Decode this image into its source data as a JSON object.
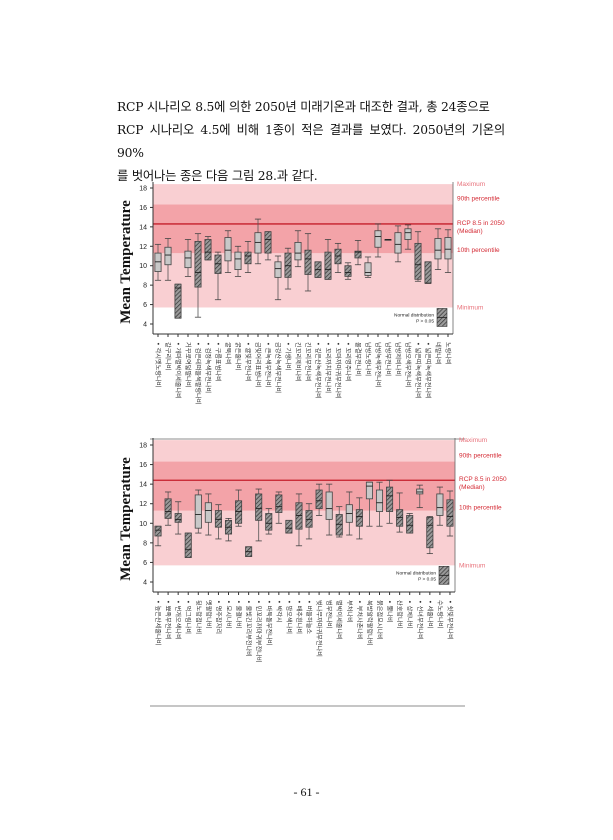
{
  "paragraph": {
    "lines": [
      "RCP 시나리오 8.5에 의한 2050년 미래기온과 대조한 결과, 총 24종으로",
      "RCP 시나리오 4.5에 비해 1종이 적은 결과를 보였다. 2050년의 기온의 90%",
      "를 벗어나는 종은 다음 그림 28.과 같다."
    ]
  },
  "page_number": "- 61 -",
  "colors": {
    "band_outer": "#f9cfd2",
    "band_inner": "#f3a3a8",
    "median_line": "#c41e2a",
    "band_label": "#e8737c",
    "median_label": "#d42a34",
    "box_fill": "#c8c8c8",
    "hatch": "#444444"
  },
  "chart_data": [
    {
      "type": "box",
      "ylabel": "Mean Temperature",
      "ylim": [
        3.5,
        18.5
      ],
      "yticks": [
        "4",
        "6",
        "8",
        "10",
        "12",
        "14",
        "16",
        "18"
      ],
      "bands": {
        "minimum": 5.7,
        "p10": 11.3,
        "median": 14.3,
        "p90": 16.3,
        "maximum": 18.4
      },
      "band_labels": {
        "maximum": "Maximum",
        "p90": "90th percentile",
        "median1": "RCP 8.5 in 2050",
        "median2": "(Median)",
        "p10": "10th percentile",
        "minimum": "Minimum"
      },
      "legend": {
        "line1": "Normal distribution",
        "line2": "P > 0.05"
      },
      "categories": [
        "• 각시멧노랑나비",
        "갈구리나비",
        "• 개마별박이세줄나비",
        "거꾸로여덟팔나비",
        "• 검은테떠들썩팔랑나비",
        "• 검정녹색부전나비",
        "• 구름표범나비",
        "굴뚝나비",
        "굵은줄나비",
        "• 귤빛부전나비",
        "금빛어리표범나비",
        "• 큰녹색부전나비",
        "금강산녹색부전나비",
        "• 기생나비",
        "긴꼬리제비나비",
        "긴꼬리부전나비",
        "• 깊은산녹색부전나비",
        "• 꼬리까치부전나비",
        "• 꼬마까마귀부전나비",
        "• 꼬리명주나비",
        "물결부전나비",
        "남방노랑나비",
        "남방녹색부전나비",
        "남방부전나비",
        "남방제비나비",
        "남방오색부전나비",
        "• 넓은띠녹색부전나비",
        "• 넓은띠녹색부전나비",
        "네발나비",
        "노랑나비"
      ],
      "boxes": [
        {
          "min": 8.5,
          "q1": 9.4,
          "med": 10.4,
          "q3": 11.3,
          "max": 12.2,
          "normal": false
        },
        {
          "min": 8.5,
          "q1": 10.1,
          "med": 11.1,
          "q3": 11.9,
          "max": 12.8,
          "normal": false
        },
        {
          "min": 4.6,
          "q1": 4.6,
          "med": 7.7,
          "q3": 8.1,
          "max": 8.1,
          "normal": true
        },
        {
          "min": 8.9,
          "q1": 9.8,
          "med": 10.8,
          "q3": 11.5,
          "max": 12.7,
          "normal": false
        },
        {
          "min": 4.7,
          "q1": 7.8,
          "med": 9.3,
          "q3": 12.5,
          "max": 13.3,
          "normal": true
        },
        {
          "min": 10.6,
          "q1": 10.6,
          "med": 11.4,
          "q3": 12.7,
          "max": 13.0,
          "normal": true
        },
        {
          "min": 6.5,
          "q1": 9.2,
          "med": 10.2,
          "q3": 11.1,
          "max": 11.4,
          "normal": true
        },
        {
          "min": 9.3,
          "q1": 10.5,
          "med": 11.6,
          "q3": 12.9,
          "max": 13.6,
          "normal": false
        },
        {
          "min": 8.9,
          "q1": 9.6,
          "med": 10.7,
          "q3": 11.4,
          "max": 12.0,
          "normal": false
        },
        {
          "min": 9.3,
          "q1": 10.2,
          "med": 11.0,
          "q3": 11.4,
          "max": 12.5,
          "normal": true
        },
        {
          "min": 10.2,
          "q1": 11.3,
          "med": 12.4,
          "q3": 13.4,
          "max": 14.8,
          "normal": false
        },
        {
          "min": 10.6,
          "q1": 11.3,
          "med": 12.7,
          "q3": 13.5,
          "max": 13.5,
          "normal": true
        },
        {
          "min": 6.5,
          "q1": 8.8,
          "med": 9.7,
          "q3": 10.4,
          "max": 11.0,
          "normal": false
        },
        {
          "min": 7.6,
          "q1": 8.8,
          "med": 10.0,
          "q3": 11.3,
          "max": 11.8,
          "normal": true
        },
        {
          "min": 9.9,
          "q1": 10.6,
          "med": 11.3,
          "q3": 12.4,
          "max": 13.6,
          "normal": false
        },
        {
          "min": 7.4,
          "q1": 9.1,
          "med": 10.7,
          "q3": 11.6,
          "max": 13.3,
          "normal": true
        },
        {
          "min": 8.8,
          "q1": 8.8,
          "med": 9.6,
          "q3": 10.4,
          "max": 10.4,
          "normal": true
        },
        {
          "min": 8.6,
          "q1": 8.6,
          "med": 9.6,
          "q3": 11.4,
          "max": 12.7,
          "normal": true
        },
        {
          "min": 9.3,
          "q1": 10.2,
          "med": 11.0,
          "q3": 11.7,
          "max": 12.3,
          "normal": true
        },
        {
          "min": 8.6,
          "q1": 8.9,
          "med": 9.3,
          "q3": 10.0,
          "max": 10.3,
          "normal": true
        },
        {
          "min": 10.1,
          "q1": 10.8,
          "med": 11.4,
          "q3": 11.5,
          "max": 12.6,
          "normal": true
        },
        {
          "min": 8.8,
          "q1": 9.0,
          "med": 9.3,
          "q3": 10.3,
          "max": 10.9,
          "normal": false
        },
        {
          "min": 10.9,
          "q1": 11.9,
          "med": 13.0,
          "q3": 13.6,
          "max": 14.3,
          "normal": false
        },
        {
          "min": 12.7,
          "q1": 12.7,
          "med": 12.7,
          "q3": 12.7,
          "max": 12.7,
          "normal": false
        },
        {
          "min": 10.4,
          "q1": 11.3,
          "med": 12.2,
          "q3": 13.4,
          "max": 14.1,
          "normal": false
        },
        {
          "min": 11.7,
          "q1": 12.7,
          "med": 13.4,
          "q3": 13.8,
          "max": 14.2,
          "normal": false
        },
        {
          "min": 8.4,
          "q1": 8.6,
          "med": 10.1,
          "q3": 12.3,
          "max": 13.5,
          "normal": true
        },
        {
          "min": 8.2,
          "q1": 8.2,
          "med": 8.2,
          "q3": 10.4,
          "max": 10.4,
          "normal": true
        },
        {
          "min": 9.6,
          "q1": 10.7,
          "med": 11.6,
          "q3": 12.8,
          "max": 13.8,
          "normal": false
        },
        {
          "min": 9.3,
          "q1": 10.7,
          "med": 11.7,
          "q3": 12.9,
          "max": 13.7,
          "normal": false
        }
      ]
    },
    {
      "type": "box",
      "ylabel": "Mean Temperature",
      "ylim": [
        3.5,
        18.5
      ],
      "yticks": [
        "4",
        "6",
        "8",
        "10",
        "12",
        "14",
        "16",
        "18"
      ],
      "bands": {
        "minimum": 5.7,
        "p10": 11.3,
        "median": 14.4,
        "p90": 16.3,
        "maximum": 18.5
      },
      "band_labels": {
        "maximum": "Maximum",
        "p90": "90th percentile",
        "median1": "RCP 8.5 in 2050",
        "median2": "(Median)",
        "p10": "10th percentile",
        "minimum": "Minimum"
      },
      "legend": {
        "line1": "Normal distribution",
        "line2": "P > 0.05"
      },
      "categories": [
        "• 높은산세줄나비",
        "• 뾰족부전나비",
        "• 번개오색나비",
        "• 먹그림나비",
        "뒷노랑점나비",
        "멧팔랑나비",
        "• 명주잠자리",
        "• 모시나비",
        "• 물결나비",
        "• 물빛긴꼬리부전나비",
        "• 민꼬리까마귀부전나비",
        "• 바둑돌부전나비",
        "• 박각시",
        "• 밤오색나비",
        "• 배추흰나비",
        "• 버들하늘소",
        "벚나무까마귀부전나비",
        "범부전나비",
        "별박이세줄나비",
        "부처나비",
        "• 부처사촌나비",
        "북방알락팔랑나비",
        "붉은점모시나비",
        "• 뿔나비",
        "산호랑나비",
        "• 상제나비",
        "• 선녀부전나비",
        "• 세줄나비",
        "수노랑나비",
        "• 쇳빛부전나비"
      ],
      "boxes": [
        {
          "min": 7.7,
          "q1": 8.7,
          "med": 9.3,
          "q3": 9.7,
          "max": 9.7,
          "normal": true
        },
        {
          "min": 9.8,
          "q1": 10.5,
          "med": 11.2,
          "q3": 12.5,
          "max": 13.2,
          "normal": true
        },
        {
          "min": 8.9,
          "q1": 10.1,
          "med": 10.4,
          "q3": 11.0,
          "max": 12.2,
          "normal": true
        },
        {
          "min": 6.5,
          "q1": 6.5,
          "med": 7.3,
          "q3": 9.0,
          "max": 9.0,
          "normal": true
        },
        {
          "min": 9.0,
          "q1": 9.5,
          "med": 10.9,
          "q3": 12.9,
          "max": 13.4,
          "normal": false
        },
        {
          "min": 8.8,
          "q1": 10.1,
          "med": 11.3,
          "q3": 12.1,
          "max": 13.0,
          "normal": false
        },
        {
          "min": 8.4,
          "q1": 9.6,
          "med": 10.4,
          "q3": 11.3,
          "max": 11.9,
          "normal": true
        },
        {
          "min": 8.2,
          "q1": 8.9,
          "med": 9.6,
          "q3": 10.3,
          "max": 10.5,
          "normal": true
        },
        {
          "min": 9.7,
          "q1": 10.0,
          "med": 11.2,
          "q3": 12.3,
          "max": 13.4,
          "normal": true
        },
        {
          "min": 6.6,
          "q1": 6.6,
          "med": 7.1,
          "q3": 7.6,
          "max": 7.6,
          "normal": true
        },
        {
          "min": 8.2,
          "q1": 10.3,
          "med": 11.5,
          "q3": 13.0,
          "max": 13.5,
          "normal": true
        },
        {
          "min": 8.9,
          "q1": 9.3,
          "med": 10.0,
          "q3": 11.0,
          "max": 11.5,
          "normal": true
        },
        {
          "min": 10.0,
          "q1": 11.1,
          "med": 11.7,
          "q3": 12.9,
          "max": 13.2,
          "normal": true
        },
        {
          "min": 9.0,
          "q1": 9.0,
          "med": 9.5,
          "q3": 10.3,
          "max": 10.3,
          "normal": true
        },
        {
          "min": 7.7,
          "q1": 9.4,
          "med": 10.8,
          "q3": 12.1,
          "max": 13.0,
          "normal": true
        },
        {
          "min": 8.4,
          "q1": 9.6,
          "med": 10.4,
          "q3": 11.3,
          "max": 12.0,
          "normal": true
        },
        {
          "min": 10.8,
          "q1": 11.5,
          "med": 12.3,
          "q3": 13.4,
          "max": 14.0,
          "normal": true
        },
        {
          "min": 8.8,
          "q1": 10.4,
          "med": 11.5,
          "q3": 13.2,
          "max": 14.0,
          "normal": false
        },
        {
          "min": 8.6,
          "q1": 8.8,
          "med": 9.9,
          "q3": 10.9,
          "max": 11.7,
          "normal": true
        },
        {
          "min": 8.8,
          "q1": 10.1,
          "med": 11.0,
          "q3": 11.9,
          "max": 13.2,
          "normal": false
        },
        {
          "min": 8.4,
          "q1": 9.7,
          "med": 10.7,
          "q3": 11.4,
          "max": 12.6,
          "normal": true
        },
        {
          "min": 9.7,
          "q1": 12.5,
          "med": 13.8,
          "q3": 14.2,
          "max": 14.2,
          "normal": false
        },
        {
          "min": 9.7,
          "q1": 11.2,
          "med": 12.1,
          "q3": 13.4,
          "max": 14.2,
          "normal": false
        },
        {
          "min": 10.0,
          "q1": 11.2,
          "med": 12.8,
          "q3": 13.7,
          "max": 14.4,
          "normal": true
        },
        {
          "min": 9.1,
          "q1": 9.7,
          "med": 10.6,
          "q3": 11.4,
          "max": 13.1,
          "normal": true
        },
        {
          "min": 9.0,
          "q1": 9.0,
          "med": 9.8,
          "q3": 10.8,
          "max": 11.0,
          "normal": true
        },
        {
          "min": 11.6,
          "q1": 13.0,
          "med": 13.2,
          "q3": 13.5,
          "max": 13.9,
          "normal": false
        },
        {
          "min": 6.9,
          "q1": 7.5,
          "med": 9.8,
          "q3": 10.6,
          "max": 10.7,
          "normal": true
        },
        {
          "min": 9.8,
          "q1": 10.8,
          "med": 11.6,
          "q3": 13.0,
          "max": 13.7,
          "normal": false
        },
        {
          "min": 8.7,
          "q1": 9.7,
          "med": 10.7,
          "q3": 12.4,
          "max": 13.3,
          "normal": true
        }
      ]
    }
  ]
}
